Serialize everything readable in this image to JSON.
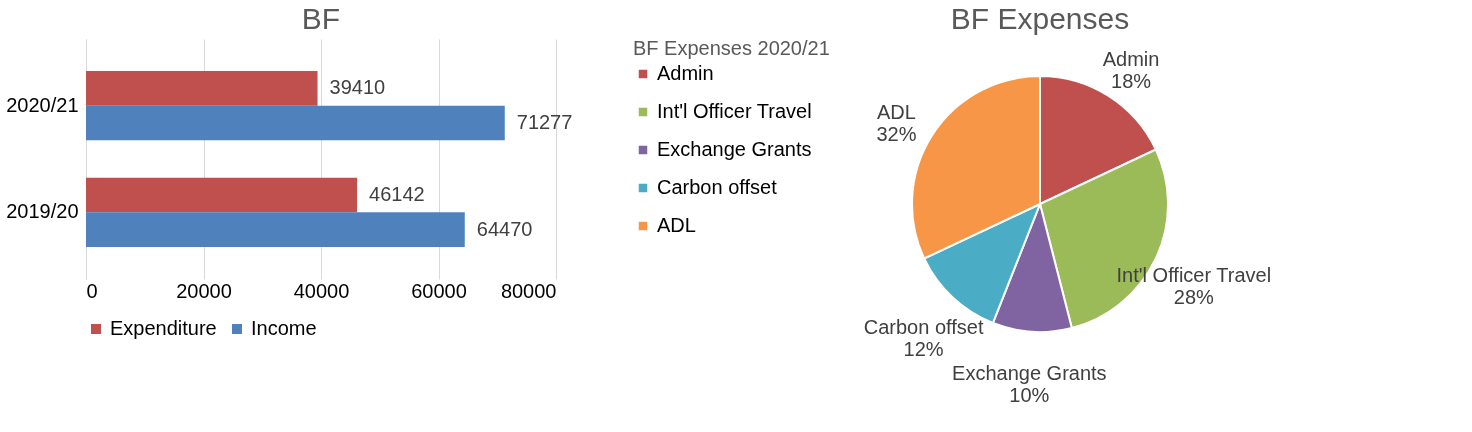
{
  "chart_data": [
    {
      "type": "bar",
      "title": "BF",
      "orientation": "horizontal",
      "categories": [
        "2020/21",
        "2019/20"
      ],
      "series": [
        {
          "name": "Expenditure",
          "color": "#c0504d",
          "values": [
            39410,
            46142
          ]
        },
        {
          "name": "Income",
          "color": "#4f81bd",
          "values": [
            71277,
            64470
          ]
        }
      ],
      "xlim": [
        0,
        80000
      ],
      "xticks": [
        0,
        20000,
        40000,
        60000,
        80000
      ],
      "grid": "x",
      "legend": "bottom",
      "data_labels": true
    },
    {
      "type": "pie",
      "title": "BF Expenses",
      "legend_title": "BF Expenses 2020/21",
      "categories": [
        "Admin",
        "Int'l Officer Travel",
        "Exchange Grants",
        "Carbon offset",
        "ADL"
      ],
      "values": [
        18,
        28,
        10,
        12,
        32
      ],
      "colors": [
        "#c0504d",
        "#9bbb59",
        "#8064a2",
        "#4bacc6",
        "#f79646"
      ],
      "value_labels": [
        "18%",
        "28%",
        "10%",
        "12%",
        "32%"
      ],
      "legend": "left"
    }
  ]
}
